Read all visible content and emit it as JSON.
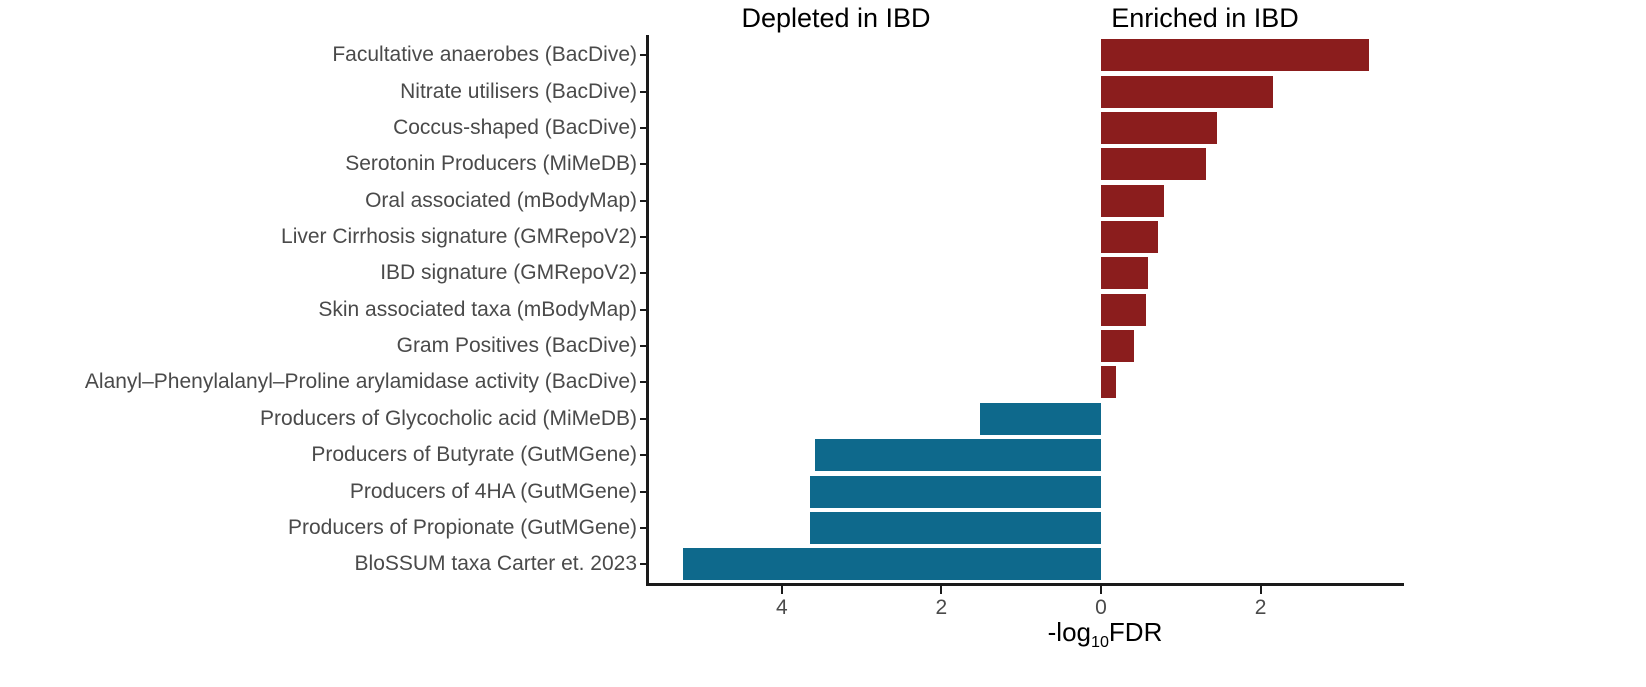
{
  "chart_data": {
    "type": "bar",
    "orientation": "horizontal-diverging",
    "title_left": "Depleted in IBD",
    "title_right": "Enriched in IBD",
    "xlabel": {
      "prefix": "-log",
      "subscript": "10",
      "suffix": "FDR"
    },
    "ylabel": "",
    "xlim": [
      -5.68,
      3.8
    ],
    "grid": false,
    "legend": false,
    "colors": {
      "enriched": "#8B1D1D",
      "depleted": "#0E698C",
      "axis": "#1a1a1a",
      "tick_text": "#4a4a4a"
    },
    "x_ticks": [
      {
        "value": -4,
        "label": "4"
      },
      {
        "value": -2,
        "label": "2"
      },
      {
        "value": 0,
        "label": "0"
      },
      {
        "value": 2,
        "label": "2"
      }
    ],
    "rows": [
      {
        "label": "Facultative anaerobes (BacDive)",
        "value": 3.36,
        "direction": "enriched"
      },
      {
        "label": "Nitrate utilisers (BacDive)",
        "value": 2.16,
        "direction": "enriched"
      },
      {
        "label": "Coccus-shaped (BacDive)",
        "value": 1.45,
        "direction": "enriched"
      },
      {
        "label": "Serotonin Producers (MiMeDB)",
        "value": 1.31,
        "direction": "enriched"
      },
      {
        "label": "Oral associated (mBodyMap)",
        "value": 0.79,
        "direction": "enriched"
      },
      {
        "label": "Liver Cirrhosis signature (GMRepoV2)",
        "value": 0.71,
        "direction": "enriched"
      },
      {
        "label": "IBD signature (GMRepoV2)",
        "value": 0.59,
        "direction": "enriched"
      },
      {
        "label": "Skin associated taxa (mBodyMap)",
        "value": 0.57,
        "direction": "enriched"
      },
      {
        "label": "Gram Positives (BacDive)",
        "value": 0.41,
        "direction": "enriched"
      },
      {
        "label": "Alanyl–Phenylalanyl–Proline arylamidase activity (BacDive)",
        "value": 0.19,
        "direction": "enriched"
      },
      {
        "label": "Producers of Glycocholic acid (MiMeDB)",
        "value": -1.52,
        "direction": "depleted"
      },
      {
        "label": "Producers of Butyrate (GutMGene)",
        "value": -3.59,
        "direction": "depleted"
      },
      {
        "label": "Producers of 4HA (GutMGene)",
        "value": -3.65,
        "direction": "depleted"
      },
      {
        "label": "Producers of Propionate (GutMGene)",
        "value": -3.65,
        "direction": "depleted"
      },
      {
        "label": "BloSSUM taxa Carter et. 2023",
        "value": -5.24,
        "direction": "depleted"
      }
    ]
  }
}
